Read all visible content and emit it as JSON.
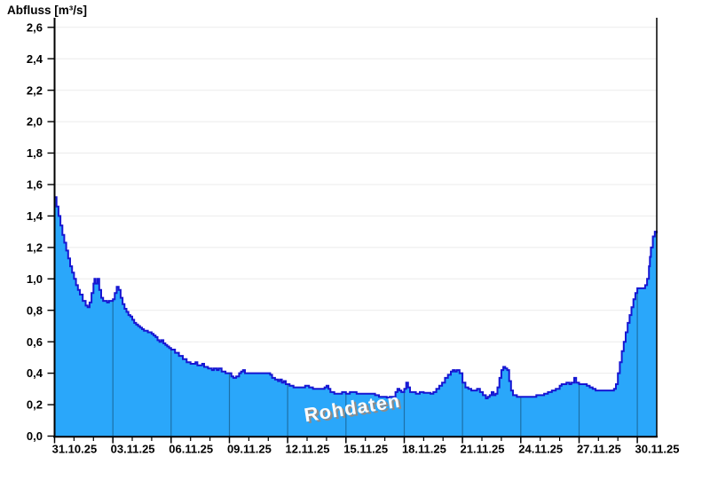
{
  "window": {
    "background": "#FFFFFF"
  },
  "chart_data": {
    "type": "area",
    "title": "Abfluss [m³/s]",
    "ylabel": "Abfluss [m³/s]",
    "xlabel": "",
    "watermark": "Rohdaten",
    "legend": "none",
    "grid": "horizontal light gray every 0.2; vertical dark lines at major date ticks visible inside filled area only",
    "x_tick_labels": [
      "31.10.25",
      "03.11.25",
      "06.11.25",
      "09.11.25",
      "12.11.25",
      "15.11.25",
      "18.11.25",
      "21.11.25",
      "24.11.25",
      "27.11.25",
      "30.11.25"
    ],
    "x_major_tick_days": [
      0,
      3,
      6,
      9,
      12,
      15,
      18,
      21,
      24,
      27,
      30
    ],
    "x_minor_tick_step_days": 1,
    "x_range_days": [
      0,
      31
    ],
    "ylim": [
      0.0,
      2.6
    ],
    "y_ticks": [
      0.0,
      0.2,
      0.4,
      0.6,
      0.8,
      1.0,
      1.2,
      1.4,
      1.6,
      1.8,
      2.0,
      2.2,
      2.4,
      2.6
    ],
    "y_tick_labels": [
      "0,0",
      "0,2",
      "0,4",
      "0,6",
      "0,8",
      "1,0",
      "1,2",
      "1,4",
      "1,6",
      "1,8",
      "2,0",
      "2,2",
      "2,4",
      "2,6"
    ],
    "colors": {
      "fill": "#2AA7FA",
      "line": "#1616D2",
      "grid": "#EBEBEB",
      "axis": "#000000",
      "vertical_grid_on_area": "rgba(0,0,0,0.33)",
      "watermark_text": "#FBFBFB",
      "watermark_shadow": "#8C8C8C"
    },
    "series": [
      {
        "name": "Abfluss Rohdaten",
        "unit": "m³/s",
        "points": [
          [
            0,
            1.52
          ],
          [
            0.1,
            1.46
          ],
          [
            0.2,
            1.4
          ],
          [
            0.3,
            1.34
          ],
          [
            0.4,
            1.28
          ],
          [
            0.5,
            1.23
          ],
          [
            0.6,
            1.18
          ],
          [
            0.7,
            1.13
          ],
          [
            0.8,
            1.08
          ],
          [
            0.9,
            1.04
          ],
          [
            1.0,
            1.0
          ],
          [
            1.1,
            0.96
          ],
          [
            1.2,
            0.93
          ],
          [
            1.3,
            0.9
          ],
          [
            1.45,
            0.86
          ],
          [
            1.6,
            0.83
          ],
          [
            1.7,
            0.82
          ],
          [
            1.8,
            0.85
          ],
          [
            1.9,
            0.91
          ],
          [
            2.0,
            0.97
          ],
          [
            2.05,
            1.0
          ],
          [
            2.1,
            0.97
          ],
          [
            2.2,
            1.0
          ],
          [
            2.3,
            0.93
          ],
          [
            2.4,
            0.88
          ],
          [
            2.5,
            0.86
          ],
          [
            2.6,
            0.86
          ],
          [
            2.7,
            0.85
          ],
          [
            2.8,
            0.86
          ],
          [
            2.9,
            0.86
          ],
          [
            3.0,
            0.87
          ],
          [
            3.1,
            0.91
          ],
          [
            3.2,
            0.95
          ],
          [
            3.3,
            0.93
          ],
          [
            3.4,
            0.88
          ],
          [
            3.5,
            0.84
          ],
          [
            3.6,
            0.81
          ],
          [
            3.7,
            0.79
          ],
          [
            3.8,
            0.77
          ],
          [
            3.9,
            0.76
          ],
          [
            4.0,
            0.74
          ],
          [
            4.1,
            0.72
          ],
          [
            4.2,
            0.71
          ],
          [
            4.3,
            0.7
          ],
          [
            4.4,
            0.69
          ],
          [
            4.5,
            0.68
          ],
          [
            4.6,
            0.67
          ],
          [
            4.7,
            0.67
          ],
          [
            4.8,
            0.66
          ],
          [
            4.9,
            0.66
          ],
          [
            5.0,
            0.65
          ],
          [
            5.1,
            0.64
          ],
          [
            5.2,
            0.63
          ],
          [
            5.3,
            0.61
          ],
          [
            5.4,
            0.6
          ],
          [
            5.5,
            0.61
          ],
          [
            5.6,
            0.59
          ],
          [
            5.7,
            0.58
          ],
          [
            5.8,
            0.57
          ],
          [
            5.9,
            0.56
          ],
          [
            6.0,
            0.55
          ],
          [
            6.2,
            0.53
          ],
          [
            6.4,
            0.51
          ],
          [
            6.6,
            0.49
          ],
          [
            6.8,
            0.47
          ],
          [
            7.0,
            0.46
          ],
          [
            7.15,
            0.46
          ],
          [
            7.25,
            0.47
          ],
          [
            7.35,
            0.45
          ],
          [
            7.5,
            0.45
          ],
          [
            7.6,
            0.46
          ],
          [
            7.7,
            0.44
          ],
          [
            7.9,
            0.43
          ],
          [
            8.1,
            0.42
          ],
          [
            8.2,
            0.43
          ],
          [
            8.35,
            0.42
          ],
          [
            8.45,
            0.43
          ],
          [
            8.6,
            0.41
          ],
          [
            8.8,
            0.4
          ],
          [
            9.0,
            0.4
          ],
          [
            9.1,
            0.38
          ],
          [
            9.2,
            0.37
          ],
          [
            9.35,
            0.38
          ],
          [
            9.5,
            0.4
          ],
          [
            9.6,
            0.41
          ],
          [
            9.7,
            0.42
          ],
          [
            9.8,
            0.4
          ],
          [
            10.0,
            0.4
          ],
          [
            10.3,
            0.4
          ],
          [
            10.6,
            0.4
          ],
          [
            10.9,
            0.4
          ],
          [
            11.1,
            0.39
          ],
          [
            11.2,
            0.37
          ],
          [
            11.35,
            0.36
          ],
          [
            11.5,
            0.35
          ],
          [
            11.6,
            0.36
          ],
          [
            11.7,
            0.34
          ],
          [
            11.8,
            0.35
          ],
          [
            11.9,
            0.33
          ],
          [
            12.1,
            0.32
          ],
          [
            12.3,
            0.31
          ],
          [
            12.5,
            0.31
          ],
          [
            12.7,
            0.31
          ],
          [
            12.9,
            0.32
          ],
          [
            13.1,
            0.31
          ],
          [
            13.3,
            0.3
          ],
          [
            13.5,
            0.3
          ],
          [
            13.7,
            0.3
          ],
          [
            13.9,
            0.31
          ],
          [
            14.0,
            0.32
          ],
          [
            14.1,
            0.3
          ],
          [
            14.2,
            0.28
          ],
          [
            14.4,
            0.27
          ],
          [
            14.6,
            0.27
          ],
          [
            14.8,
            0.28
          ],
          [
            15.0,
            0.27
          ],
          [
            15.2,
            0.28
          ],
          [
            15.4,
            0.28
          ],
          [
            15.55,
            0.27
          ],
          [
            15.8,
            0.27
          ],
          [
            16.0,
            0.27
          ],
          [
            16.3,
            0.27
          ],
          [
            16.5,
            0.26
          ],
          [
            16.7,
            0.25
          ],
          [
            16.9,
            0.25
          ],
          [
            17.1,
            0.245
          ],
          [
            17.25,
            0.25
          ],
          [
            17.4,
            0.25
          ],
          [
            17.55,
            0.28
          ],
          [
            17.65,
            0.3
          ],
          [
            17.75,
            0.29
          ],
          [
            17.85,
            0.28
          ],
          [
            18.0,
            0.3
          ],
          [
            18.1,
            0.34
          ],
          [
            18.2,
            0.31
          ],
          [
            18.3,
            0.28
          ],
          [
            18.45,
            0.28
          ],
          [
            18.6,
            0.27
          ],
          [
            18.8,
            0.28
          ],
          [
            19.0,
            0.275
          ],
          [
            19.2,
            0.275
          ],
          [
            19.35,
            0.27
          ],
          [
            19.5,
            0.28
          ],
          [
            19.65,
            0.3
          ],
          [
            19.8,
            0.32
          ],
          [
            19.95,
            0.34
          ],
          [
            20.1,
            0.37
          ],
          [
            20.25,
            0.39
          ],
          [
            20.4,
            0.41
          ],
          [
            20.5,
            0.42
          ],
          [
            20.6,
            0.41
          ],
          [
            20.7,
            0.42
          ],
          [
            20.85,
            0.4
          ],
          [
            21.0,
            0.34
          ],
          [
            21.15,
            0.31
          ],
          [
            21.3,
            0.3
          ],
          [
            21.45,
            0.29
          ],
          [
            21.6,
            0.29
          ],
          [
            21.75,
            0.3
          ],
          [
            21.9,
            0.28
          ],
          [
            22.05,
            0.26
          ],
          [
            22.2,
            0.24
          ],
          [
            22.3,
            0.25
          ],
          [
            22.4,
            0.26
          ],
          [
            22.5,
            0.28
          ],
          [
            22.6,
            0.26
          ],
          [
            22.7,
            0.27
          ],
          [
            22.8,
            0.31
          ],
          [
            22.9,
            0.37
          ],
          [
            23.0,
            0.42
          ],
          [
            23.1,
            0.44
          ],
          [
            23.2,
            0.43
          ],
          [
            23.3,
            0.42
          ],
          [
            23.4,
            0.35
          ],
          [
            23.5,
            0.29
          ],
          [
            23.6,
            0.26
          ],
          [
            23.8,
            0.25
          ],
          [
            24.0,
            0.25
          ],
          [
            24.2,
            0.25
          ],
          [
            24.4,
            0.25
          ],
          [
            24.6,
            0.25
          ],
          [
            24.8,
            0.26
          ],
          [
            25.0,
            0.26
          ],
          [
            25.2,
            0.27
          ],
          [
            25.4,
            0.28
          ],
          [
            25.6,
            0.29
          ],
          [
            25.8,
            0.3
          ],
          [
            26.0,
            0.32
          ],
          [
            26.1,
            0.33
          ],
          [
            26.25,
            0.33
          ],
          [
            26.35,
            0.34
          ],
          [
            26.5,
            0.33
          ],
          [
            26.6,
            0.34
          ],
          [
            26.75,
            0.37
          ],
          [
            26.85,
            0.34
          ],
          [
            27.0,
            0.33
          ],
          [
            27.2,
            0.33
          ],
          [
            27.4,
            0.32
          ],
          [
            27.55,
            0.31
          ],
          [
            27.7,
            0.3
          ],
          [
            27.85,
            0.29
          ],
          [
            28.0,
            0.29
          ],
          [
            28.2,
            0.29
          ],
          [
            28.4,
            0.29
          ],
          [
            28.6,
            0.29
          ],
          [
            28.8,
            0.3
          ],
          [
            28.9,
            0.33
          ],
          [
            29.0,
            0.4
          ],
          [
            29.1,
            0.47
          ],
          [
            29.2,
            0.54
          ],
          [
            29.3,
            0.6
          ],
          [
            29.4,
            0.66
          ],
          [
            29.5,
            0.72
          ],
          [
            29.6,
            0.77
          ],
          [
            29.7,
            0.82
          ],
          [
            29.8,
            0.87
          ],
          [
            29.9,
            0.91
          ],
          [
            30.0,
            0.94
          ],
          [
            30.15,
            0.94
          ],
          [
            30.3,
            0.94
          ],
          [
            30.4,
            0.96
          ],
          [
            30.5,
            1.0
          ],
          [
            30.6,
            1.08
          ],
          [
            30.65,
            1.14
          ],
          [
            30.7,
            1.2
          ],
          [
            30.8,
            1.27
          ],
          [
            30.9,
            1.3
          ],
          [
            31.0,
            1.29
          ]
        ]
      }
    ]
  }
}
